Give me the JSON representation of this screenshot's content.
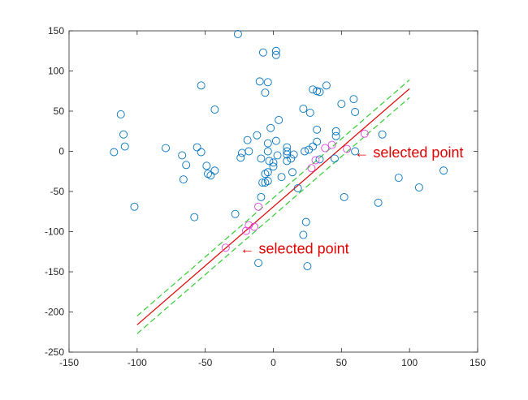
{
  "chart_data": {
    "type": "scatter",
    "xlim": [
      -150,
      150
    ],
    "ylim": [
      -250,
      150
    ],
    "xticks": [
      -150,
      -100,
      -50,
      0,
      50,
      100,
      150
    ],
    "yticks": [
      -250,
      -200,
      -150,
      -100,
      -50,
      0,
      50,
      100,
      150
    ],
    "grid": false,
    "box": true,
    "series": [
      {
        "color": "#0072bd",
        "x": [
          -26,
          -7.5,
          2,
          2,
          -53,
          -10,
          -4,
          -6,
          29,
          32,
          34,
          39,
          -43,
          22,
          27,
          50,
          59,
          60,
          -112,
          -110,
          -109,
          -117,
          -79,
          -67,
          -64,
          -66,
          -102,
          -56,
          -53,
          -49,
          -48,
          -46,
          -43,
          -58,
          -28,
          -23,
          -24,
          -18,
          -19,
          -12,
          -9,
          -8,
          -9,
          -4,
          -2,
          -4,
          -3,
          0,
          0,
          3,
          2,
          4,
          -4,
          -6,
          -6,
          -4,
          6,
          10,
          10,
          10,
          13,
          10,
          14,
          15,
          23,
          26,
          29,
          32,
          32,
          46,
          46,
          34,
          45,
          60,
          80,
          52,
          77,
          92,
          107,
          125,
          18,
          24,
          22,
          25,
          -11
        ],
        "values": [
          146,
          123,
          125,
          120,
          82,
          87,
          86,
          73,
          77,
          75,
          74,
          82,
          52,
          53,
          48,
          59,
          65,
          49,
          46,
          21,
          6,
          -1,
          4,
          -5,
          -17,
          -35,
          -69,
          5,
          -1,
          -18,
          -28,
          -30,
          -24,
          -82,
          -78,
          -2,
          -8,
          0,
          14,
          20,
          -9,
          -39,
          -57,
          10,
          29,
          0,
          -12,
          -19,
          -14,
          -5,
          13,
          39,
          -26,
          -28,
          -39,
          -37,
          -32,
          5,
          0,
          -4,
          -9,
          -12,
          -26,
          -4,
          0,
          2,
          6,
          12,
          27,
          25,
          19,
          -10,
          -9,
          0,
          21,
          -57,
          -64,
          -33,
          -45,
          -24,
          -46,
          -88,
          -104,
          -143,
          -139
        ]
      },
      {
        "color": "#e040e0",
        "x": [
          -18,
          -20,
          -14,
          -11,
          31,
          28,
          38,
          43,
          54,
          67,
          -35
        ],
        "values": [
          -92,
          -99,
          -94,
          -69,
          -11,
          -21,
          4,
          8,
          3,
          22,
          -120
        ]
      }
    ],
    "lines": [
      {
        "color": "#e00000",
        "dash": false,
        "x": [
          -100,
          100
        ],
        "values": [
          -216,
          78
        ]
      },
      {
        "color": "#33cc33",
        "dash": true,
        "x": [
          -100,
          100
        ],
        "values": [
          -205,
          89
        ]
      },
      {
        "color": "#33cc33",
        "dash": true,
        "x": [
          -100,
          100
        ],
        "values": [
          -227,
          67
        ]
      }
    ],
    "annotations": [
      {
        "text": "← selected point",
        "x": 56,
        "y": -1.5,
        "color": "#e00000"
      },
      {
        "text": "← selected point",
        "x": -28,
        "y": -121,
        "color": "#e00000"
      }
    ]
  }
}
